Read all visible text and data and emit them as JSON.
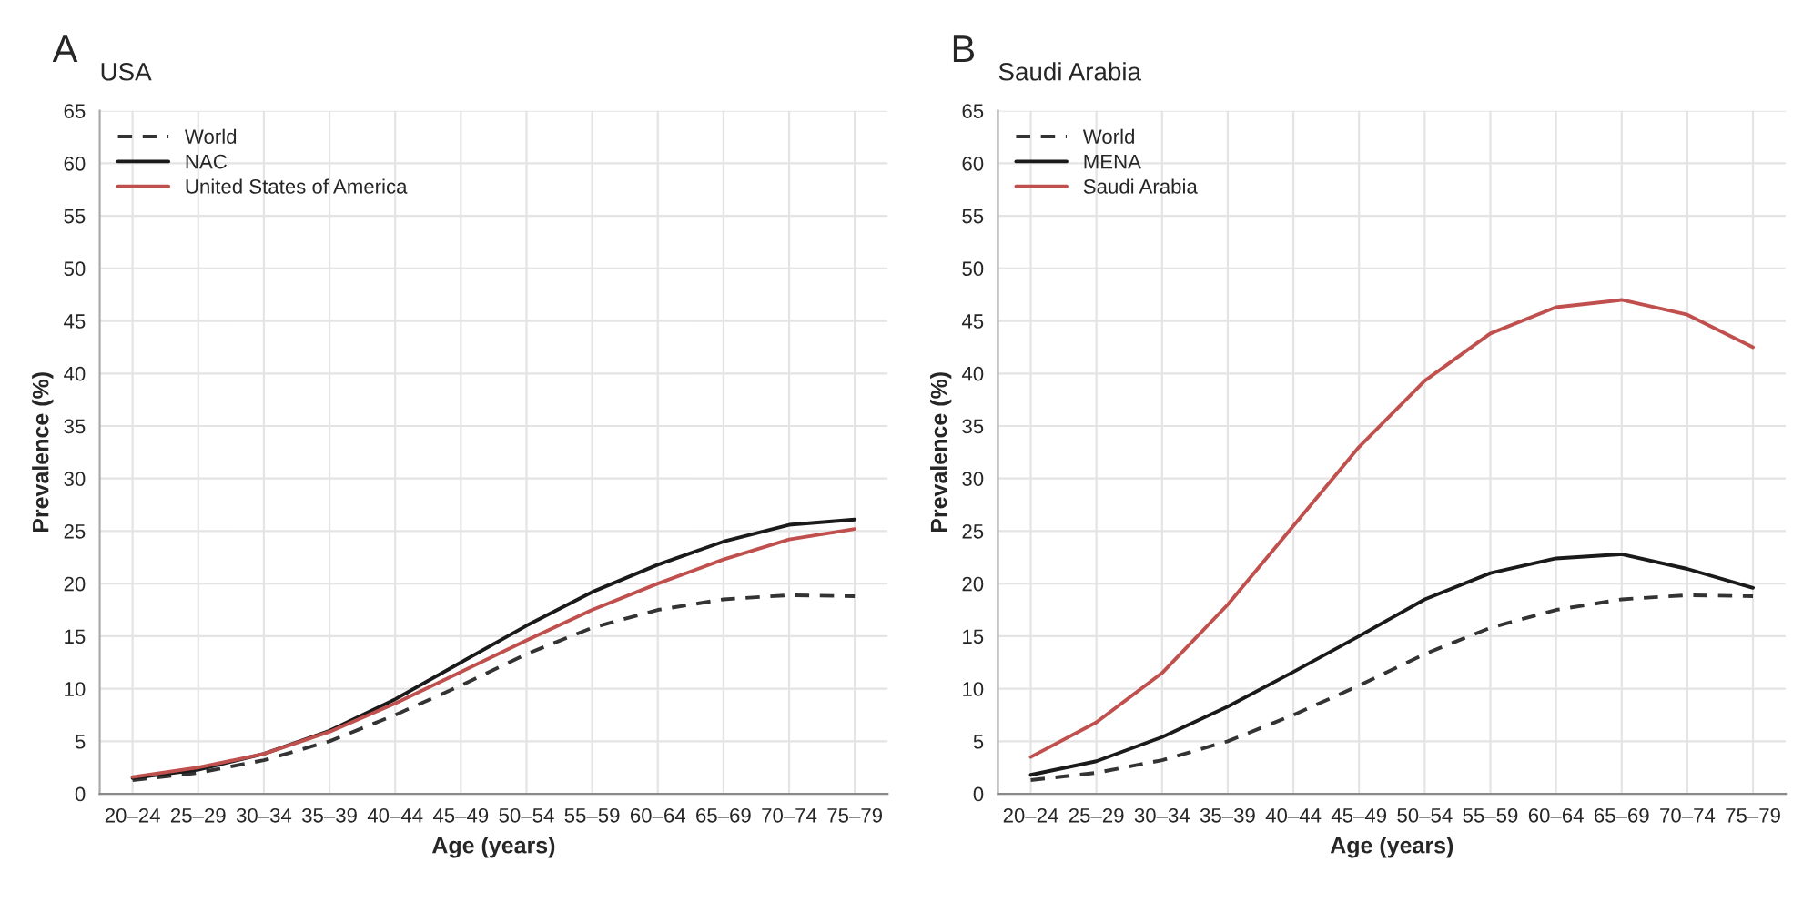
{
  "chart_data": [
    {
      "type": "line",
      "title": "USA",
      "annotations": [
        "A"
      ],
      "xlabel": "Age (years)",
      "ylabel": "Prevalence (%)",
      "categories": [
        "20–24",
        "25–29",
        "30–34",
        "35–39",
        "40–44",
        "45–49",
        "50–54",
        "55–59",
        "60–64",
        "65–69",
        "70–74",
        "75–79"
      ],
      "series": [
        {
          "name": "World",
          "color": "#333333",
          "line_style": "dashed",
          "values": [
            1.3,
            2.0,
            3.2,
            5.0,
            7.5,
            10.3,
            13.3,
            15.8,
            17.5,
            18.5,
            18.9,
            18.8
          ]
        },
        {
          "name": "NAC",
          "color": "#1a1a1a",
          "line_style": "solid",
          "values": [
            1.5,
            2.3,
            3.8,
            6.0,
            9.0,
            12.5,
            16.0,
            19.2,
            21.8,
            24.0,
            25.6,
            26.1
          ]
        },
        {
          "name": "United States of America",
          "color": "#c0504d",
          "line_style": "solid",
          "values": [
            1.6,
            2.5,
            3.8,
            5.9,
            8.6,
            11.6,
            14.6,
            17.5,
            20.0,
            22.3,
            24.2,
            25.2
          ]
        }
      ],
      "ylim": [
        0,
        65
      ],
      "yticks": [
        0,
        5,
        10,
        15,
        20,
        25,
        30,
        35,
        40,
        45,
        50,
        55,
        60,
        65
      ],
      "grid": true,
      "legend": "top left"
    },
    {
      "type": "line",
      "title": "Saudi Arabia",
      "annotations": [
        "B"
      ],
      "xlabel": "Age (years)",
      "ylabel": "Prevalence (%)",
      "categories": [
        "20–24",
        "25–29",
        "30–34",
        "35–39",
        "40–44",
        "45–49",
        "50–54",
        "55–59",
        "60–64",
        "65–69",
        "70–74",
        "75–79"
      ],
      "series": [
        {
          "name": "World",
          "color": "#333333",
          "line_style": "dashed",
          "values": [
            1.3,
            2.0,
            3.2,
            5.0,
            7.5,
            10.3,
            13.3,
            15.8,
            17.5,
            18.5,
            18.9,
            18.8
          ]
        },
        {
          "name": "MENA",
          "color": "#1a1a1a",
          "line_style": "solid",
          "values": [
            1.8,
            3.1,
            5.4,
            8.3,
            11.6,
            15.0,
            18.5,
            21.0,
            22.4,
            22.8,
            21.4,
            19.6
          ]
        },
        {
          "name": "Saudi Arabia",
          "color": "#c0504d",
          "line_style": "solid",
          "values": [
            3.5,
            6.8,
            11.5,
            18.0,
            25.5,
            33.0,
            39.3,
            43.8,
            46.3,
            47.0,
            45.6,
            42.5
          ]
        }
      ],
      "ylim": [
        0,
        65
      ],
      "yticks": [
        0,
        5,
        10,
        15,
        20,
        25,
        30,
        35,
        40,
        45,
        50,
        55,
        60,
        65
      ],
      "grid": true,
      "legend": "top left"
    }
  ]
}
